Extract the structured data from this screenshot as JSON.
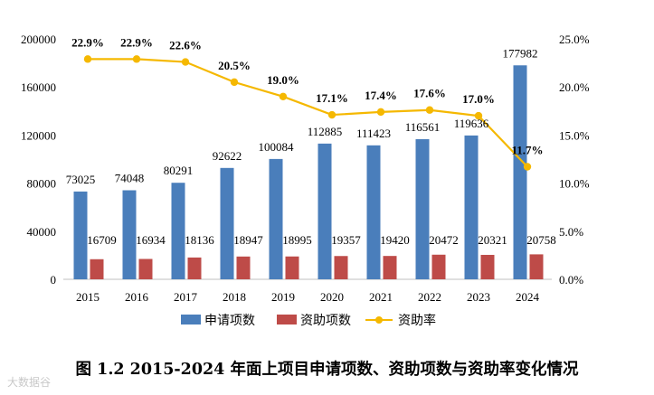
{
  "chart_data": {
    "type": "bar",
    "categories": [
      "2015",
      "2016",
      "2017",
      "2018",
      "2019",
      "2020",
      "2021",
      "2022",
      "2023",
      "2024"
    ],
    "series": [
      {
        "name": "申请项数",
        "axis": "left",
        "type": "bar",
        "color": "#4a7ebb",
        "values": [
          73025,
          74048,
          80291,
          92622,
          100084,
          112885,
          111423,
          116561,
          119636,
          177982
        ],
        "labels": [
          "73025",
          "74048",
          "80291",
          "92622",
          "100084",
          "112885",
          "111423",
          "116561",
          "119636",
          "177982"
        ]
      },
      {
        "name": "资助项数",
        "axis": "left",
        "type": "bar",
        "color": "#be4b48",
        "values": [
          16709,
          16934,
          18136,
          18947,
          18995,
          19357,
          19420,
          20472,
          20321,
          20758
        ],
        "labels": [
          "16709",
          "16934",
          "18136",
          "18947",
          "18995",
          "19357",
          "19420",
          "20472",
          "20321",
          "20758"
        ]
      },
      {
        "name": "资助率",
        "axis": "right",
        "type": "line",
        "color": "#f5b800",
        "values": [
          22.9,
          22.9,
          22.6,
          20.5,
          19.0,
          17.1,
          17.4,
          17.6,
          17.0,
          11.7
        ],
        "labels": [
          "22.9%",
          "22.9%",
          "22.6%",
          "20.5%",
          "19.0%",
          "17.1%",
          "17.4%",
          "17.6%",
          "17.0%",
          "11.7%"
        ]
      }
    ],
    "left_axis": {
      "min": 0,
      "max": 200000,
      "ticks": [
        0,
        40000,
        80000,
        120000,
        160000,
        200000
      ],
      "tick_labels": [
        "0",
        "40000",
        "80000",
        "120000",
        "160000",
        "200000"
      ]
    },
    "right_axis": {
      "min": 0,
      "max": 25,
      "ticks": [
        0,
        5,
        10,
        15,
        20,
        25
      ],
      "tick_labels": [
        "0.0%",
        "5.0%",
        "10.0%",
        "15.0%",
        "20.0%",
        "25.0%"
      ]
    },
    "legend_position": "bottom",
    "title": "图 1.2  2015-2024 年面上项目申请项数、资助项数与资助率变化情况"
  },
  "watermark": "大数据谷"
}
